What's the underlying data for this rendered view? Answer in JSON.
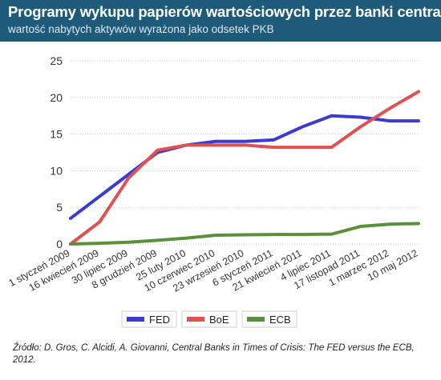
{
  "header": {
    "title": "Programy wykupu papierów wartościowych przez banki centralne",
    "subtitle": "wartość nabytych aktywów wyrażona jako odsetek PKB"
  },
  "footer": {
    "source": "Źródło: D. Gros, C. Alcidi, A. Giovanni, Central Banks in Times of Crisis: The FED versus the ECB, 2012."
  },
  "colors": {
    "header_bg": "#1e5a7a",
    "FED": "#3b3bd1",
    "BoE": "#e05252",
    "ECB": "#5a8f3c"
  },
  "chart_data": {
    "type": "line",
    "title": "Programy wykupu papierów wartościowych przez banki centralne",
    "subtitle": "wartość nabytych aktywów wyrażona jako odsetek PKB",
    "ylim": [
      0,
      25
    ],
    "yticks": [
      0,
      5,
      10,
      15,
      20,
      25
    ],
    "grid": true,
    "legend": "bottom",
    "xticks": [
      "1 styczeń 2009",
      "16 kwiecień 2009",
      "30 lipiec 2009",
      "8 grudzień 2009",
      "25 luty 2010",
      "10 czerwiec 2010",
      "23 wrzesień 2010",
      "6 styczeń 2011",
      "21 kwiecień 2011",
      "4 lipiec 2011",
      "17 listopad 2011",
      "1 marzec 2012",
      "10 maj 2012"
    ],
    "x": [
      "1 styczeń 2009",
      "16 kwiecień 2009",
      "30 lipiec 2009",
      "8 grudzień 2009",
      "25 luty 2010",
      "10 czerwiec 2010",
      "23 wrzesień 2010",
      "6 styczeń 2011",
      "21 kwiecień 2011",
      "4 lipiec 2011",
      "17 listopad 2011",
      "1 marzec 2012",
      "10 maj 2012"
    ],
    "series": [
      {
        "name": "FED",
        "color": "#3b3bd1",
        "values": [
          3.5,
          6.5,
          9.5,
          12.5,
          13.5,
          14.0,
          14.0,
          14.2,
          16.0,
          17.5,
          17.3,
          16.8,
          16.8
        ]
      },
      {
        "name": "BoE",
        "color": "#e05252",
        "values": [
          0.0,
          3.0,
          9.0,
          12.8,
          13.5,
          13.5,
          13.5,
          13.2,
          13.2,
          13.2,
          16.0,
          18.5,
          20.8
        ]
      },
      {
        "name": "ECB",
        "color": "#5a8f3c",
        "values": [
          0.0,
          0.1,
          0.25,
          0.5,
          0.8,
          1.2,
          1.25,
          1.3,
          1.3,
          1.35,
          2.4,
          2.7,
          2.8
        ]
      }
    ]
  }
}
